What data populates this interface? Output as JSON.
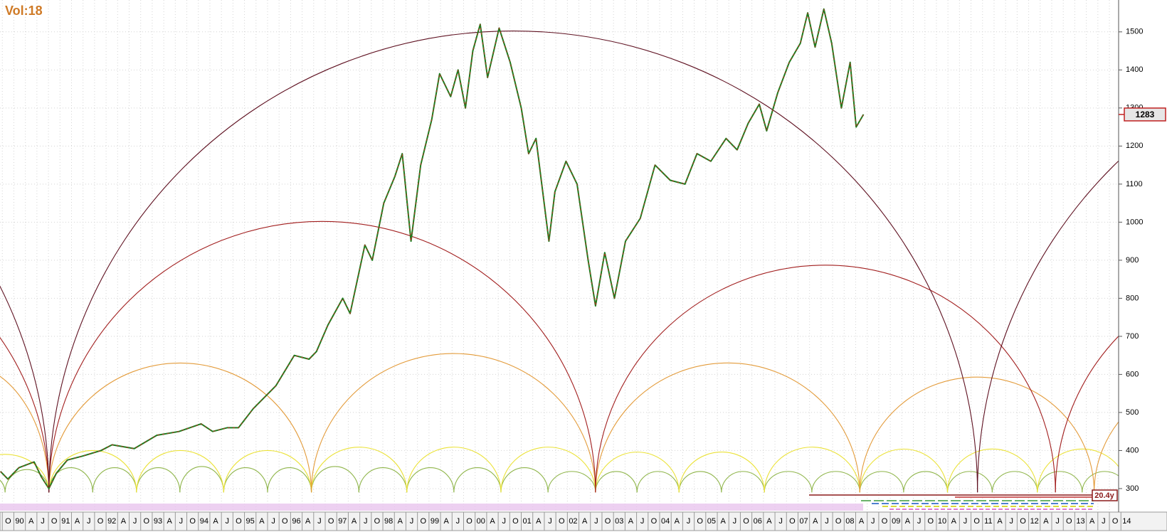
{
  "chart_data": {
    "type": "line",
    "indicator_label": "Vol:18",
    "color": "#1f7d1f",
    "x": [
      1989.71,
      1989.87,
      1990.11,
      1990.44,
      1990.6,
      1990.76,
      1990.92,
      1991.16,
      1991.48,
      1991.89,
      1992.13,
      1992.61,
      1993.1,
      1993.58,
      1994.06,
      1994.31,
      1994.63,
      1994.87,
      1995.19,
      1995.68,
      1996.08,
      1996.4,
      1996.56,
      1996.81,
      1997.13,
      1997.29,
      1997.61,
      1997.77,
      1998.02,
      1998.26,
      1998.42,
      1998.61,
      1998.82,
      1999.06,
      1999.23,
      1999.47,
      1999.63,
      1999.79,
      1999.95,
      2000.11,
      2000.27,
      2000.52,
      2000.76,
      2001.0,
      2001.16,
      2001.32,
      2001.6,
      2001.73,
      2001.97,
      2002.21,
      2002.45,
      2002.61,
      2002.81,
      2003.02,
      2003.26,
      2003.58,
      2003.9,
      2004.23,
      2004.55,
      2004.81,
      2005.11,
      2005.44,
      2005.68,
      2005.92,
      2006.16,
      2006.32,
      2006.56,
      2006.81,
      2007.05,
      2007.21,
      2007.37,
      2007.56,
      2007.73,
      2007.94,
      2008.13,
      2008.26,
      2008.42
    ],
    "values": [
      345,
      325,
      355,
      370,
      330,
      300,
      340,
      375,
      385,
      400,
      415,
      405,
      440,
      450,
      470,
      450,
      460,
      460,
      510,
      570,
      650,
      640,
      660,
      730,
      800,
      760,
      940,
      900,
      1050,
      1120,
      1180,
      950,
      1150,
      1270,
      1390,
      1330,
      1400,
      1300,
      1450,
      1520,
      1380,
      1510,
      1420,
      1300,
      1180,
      1220,
      950,
      1080,
      1160,
      1100,
      900,
      780,
      920,
      800,
      950,
      1010,
      1150,
      1110,
      1100,
      1180,
      1160,
      1220,
      1190,
      1260,
      1310,
      1240,
      1340,
      1420,
      1470,
      1550,
      1460,
      1560,
      1470,
      1300,
      1420,
      1250,
      1283
    ],
    "last_price": 1283,
    "xlim": [
      1989.7,
      2013.95
    ],
    "ylim": [
      270,
      1580
    ],
    "yticks": [
      300,
      400,
      500,
      600,
      700,
      800,
      900,
      1000,
      1100,
      1200,
      1300,
      1400,
      1500
    ],
    "xticks": [
      {
        "value": 1989.75,
        "label": "O"
      },
      {
        "value": 1990,
        "label": "90"
      },
      {
        "value": 1990.25,
        "label": "A"
      },
      {
        "value": 1990.5,
        "label": "J"
      },
      {
        "value": 1990.75,
        "label": "O"
      },
      {
        "value": 1991,
        "label": "91"
      },
      {
        "value": 1991.25,
        "label": "A"
      },
      {
        "value": 1991.5,
        "label": "J"
      },
      {
        "value": 1991.75,
        "label": "O"
      },
      {
        "value": 1992,
        "label": "92"
      },
      {
        "value": 1992.25,
        "label": "A"
      },
      {
        "value": 1992.5,
        "label": "J"
      },
      {
        "value": 1992.75,
        "label": "O"
      },
      {
        "value": 1993,
        "label": "93"
      },
      {
        "value": 1993.25,
        "label": "A"
      },
      {
        "value": 1993.5,
        "label": "J"
      },
      {
        "value": 1993.75,
        "label": "O"
      },
      {
        "value": 1994,
        "label": "94"
      },
      {
        "value": 1994.25,
        "label": "A"
      },
      {
        "value": 1994.5,
        "label": "J"
      },
      {
        "value": 1994.75,
        "label": "O"
      },
      {
        "value": 1995,
        "label": "95"
      },
      {
        "value": 1995.25,
        "label": "A"
      },
      {
        "value": 1995.5,
        "label": "J"
      },
      {
        "value": 1995.75,
        "label": "O"
      },
      {
        "value": 1996,
        "label": "96"
      },
      {
        "value": 1996.25,
        "label": "A"
      },
      {
        "value": 1996.5,
        "label": "J"
      },
      {
        "value": 1996.75,
        "label": "O"
      },
      {
        "value": 1997,
        "label": "97"
      },
      {
        "value": 1997.25,
        "label": "A"
      },
      {
        "value": 1997.5,
        "label": "J"
      },
      {
        "value": 1997.75,
        "label": "O"
      },
      {
        "value": 1998,
        "label": "98"
      },
      {
        "value": 1998.25,
        "label": "A"
      },
      {
        "value": 1998.5,
        "label": "J"
      },
      {
        "value": 1998.75,
        "label": "O"
      },
      {
        "value": 1999,
        "label": "99"
      },
      {
        "value": 1999.25,
        "label": "A"
      },
      {
        "value": 1999.5,
        "label": "J"
      },
      {
        "value": 1999.75,
        "label": "O"
      },
      {
        "value": 2000,
        "label": "00"
      },
      {
        "value": 2000.25,
        "label": "A"
      },
      {
        "value": 2000.5,
        "label": "J"
      },
      {
        "value": 2000.75,
        "label": "O"
      },
      {
        "value": 2001,
        "label": "01"
      },
      {
        "value": 2001.25,
        "label": "A"
      },
      {
        "value": 2001.5,
        "label": "J"
      },
      {
        "value": 2001.75,
        "label": "O"
      },
      {
        "value": 2002,
        "label": "02"
      },
      {
        "value": 2002.25,
        "label": "A"
      },
      {
        "value": 2002.5,
        "label": "J"
      },
      {
        "value": 2002.75,
        "label": "O"
      },
      {
        "value": 2003,
        "label": "03"
      },
      {
        "value": 2003.25,
        "label": "A"
      },
      {
        "value": 2003.5,
        "label": "J"
      },
      {
        "value": 2003.75,
        "label": "O"
      },
      {
        "value": 2004,
        "label": "04"
      },
      {
        "value": 2004.25,
        "label": "A"
      },
      {
        "value": 2004.5,
        "label": "J"
      },
      {
        "value": 2004.75,
        "label": "O"
      },
      {
        "value": 2005,
        "label": "05"
      },
      {
        "value": 2005.25,
        "label": "A"
      },
      {
        "value": 2005.5,
        "label": "J"
      },
      {
        "value": 2005.75,
        "label": "O"
      },
      {
        "value": 2006,
        "label": "06"
      },
      {
        "value": 2006.25,
        "label": "A"
      },
      {
        "value": 2006.5,
        "label": "J"
      },
      {
        "value": 2006.75,
        "label": "O"
      },
      {
        "value": 2007,
        "label": "07"
      },
      {
        "value": 2007.25,
        "label": "A"
      },
      {
        "value": 2007.5,
        "label": "J"
      },
      {
        "value": 2007.75,
        "label": "O"
      },
      {
        "value": 2008,
        "label": "08"
      },
      {
        "value": 2008.25,
        "label": "A"
      },
      {
        "value": 2008.5,
        "label": "J"
      },
      {
        "value": 2008.75,
        "label": "O"
      },
      {
        "value": 2009,
        "label": "09"
      },
      {
        "value": 2009.25,
        "label": "A"
      },
      {
        "value": 2009.5,
        "label": "J"
      },
      {
        "value": 2009.75,
        "label": "O"
      },
      {
        "value": 2010,
        "label": "10"
      },
      {
        "value": 2010.25,
        "label": "A"
      },
      {
        "value": 2010.5,
        "label": "J"
      },
      {
        "value": 2010.75,
        "label": "O"
      },
      {
        "value": 2011,
        "label": "11"
      },
      {
        "value": 2011.25,
        "label": "A"
      },
      {
        "value": 2011.5,
        "label": "J"
      },
      {
        "value": 2011.75,
        "label": "O"
      },
      {
        "value": 2012,
        "label": "12"
      },
      {
        "value": 2012.25,
        "label": "A"
      },
      {
        "value": 2012.5,
        "label": "J"
      },
      {
        "value": 2012.75,
        "label": "O"
      },
      {
        "value": 2013,
        "label": "13"
      },
      {
        "value": 2013.25,
        "label": "A"
      },
      {
        "value": 2013.5,
        "label": "J"
      },
      {
        "value": 2013.75,
        "label": "O"
      },
      {
        "value": 2014,
        "label": "14"
      }
    ],
    "grid": true,
    "cycle_label": "20.4y",
    "cycle_base": 290,
    "arcs": [
      {
        "from": 1988.86,
        "to": 1989.81,
        "peak": 340,
        "color": "#8fb54a"
      },
      {
        "from": 1989.81,
        "to": 1990.76,
        "peak": 350,
        "color": "#8fb54a"
      },
      {
        "from": 1990.76,
        "to": 1991.71,
        "peak": 355,
        "color": "#8fb54a"
      },
      {
        "from": 1991.71,
        "to": 1992.66,
        "peak": 355,
        "color": "#8fb54a"
      },
      {
        "from": 1992.66,
        "to": 1993.6,
        "peak": 355,
        "color": "#8fb54a"
      },
      {
        "from": 1993.6,
        "to": 1994.55,
        "peak": 358,
        "color": "#8fb54a"
      },
      {
        "from": 1994.55,
        "to": 1995.5,
        "peak": 355,
        "color": "#8fb54a"
      },
      {
        "from": 1995.5,
        "to": 1996.45,
        "peak": 355,
        "color": "#8fb54a"
      },
      {
        "from": 1996.45,
        "to": 1997.48,
        "peak": 358,
        "color": "#8fb54a"
      },
      {
        "from": 1997.48,
        "to": 1998.52,
        "peak": 355,
        "color": "#8fb54a"
      },
      {
        "from": 1998.52,
        "to": 1999.54,
        "peak": 355,
        "color": "#8fb54a"
      },
      {
        "from": 1999.54,
        "to": 2000.56,
        "peak": 355,
        "color": "#8fb54a"
      },
      {
        "from": 2000.56,
        "to": 2001.58,
        "peak": 355,
        "color": "#8fb54a"
      },
      {
        "from": 2001.58,
        "to": 2002.61,
        "peak": 345,
        "color": "#8fb54a"
      },
      {
        "from": 2002.61,
        "to": 2003.51,
        "peak": 345,
        "color": "#8fb54a"
      },
      {
        "from": 2003.51,
        "to": 2004.42,
        "peak": 345,
        "color": "#8fb54a"
      },
      {
        "from": 2004.42,
        "to": 2005.34,
        "peak": 345,
        "color": "#8fb54a"
      },
      {
        "from": 2005.34,
        "to": 2006.27,
        "peak": 345,
        "color": "#8fb54a"
      },
      {
        "from": 2006.27,
        "to": 2007.3,
        "peak": 345,
        "color": "#8fb54a"
      },
      {
        "from": 2007.3,
        "to": 2008.34,
        "peak": 345,
        "color": "#8fb54a"
      },
      {
        "from": 2008.34,
        "to": 2009.29,
        "peak": 345,
        "color": "#8fb54a"
      },
      {
        "from": 2009.29,
        "to": 2010.24,
        "peak": 345,
        "color": "#8fb54a"
      },
      {
        "from": 2010.24,
        "to": 2011.21,
        "peak": 345,
        "color": "#8fb54a"
      },
      {
        "from": 2011.21,
        "to": 2012.19,
        "peak": 345,
        "color": "#8fb54a"
      },
      {
        "from": 2012.19,
        "to": 2013.16,
        "peak": 345,
        "color": "#8fb54a"
      },
      {
        "from": 2013.16,
        "to": 2014.14,
        "peak": 345,
        "color": "#8fb54a"
      },
      {
        "from": 1988.86,
        "to": 1990.76,
        "peak": 390,
        "color": "#ebe238"
      },
      {
        "from": 1990.76,
        "to": 1992.66,
        "peak": 400,
        "color": "#ebe238"
      },
      {
        "from": 1992.66,
        "to": 1994.55,
        "peak": 400,
        "color": "#ebe238"
      },
      {
        "from": 1994.55,
        "to": 1996.45,
        "peak": 400,
        "color": "#ebe238"
      },
      {
        "from": 1996.45,
        "to": 1998.52,
        "peak": 409,
        "color": "#ebe238"
      },
      {
        "from": 1998.52,
        "to": 2000.56,
        "peak": 409,
        "color": "#ebe238"
      },
      {
        "from": 2000.56,
        "to": 2002.61,
        "peak": 409,
        "color": "#ebe238"
      },
      {
        "from": 2002.61,
        "to": 2004.42,
        "peak": 396,
        "color": "#ebe238"
      },
      {
        "from": 2004.42,
        "to": 2006.27,
        "peak": 396,
        "color": "#ebe238"
      },
      {
        "from": 2006.27,
        "to": 2008.34,
        "peak": 409,
        "color": "#ebe238"
      },
      {
        "from": 2008.34,
        "to": 2010.24,
        "peak": 404,
        "color": "#ebe238"
      },
      {
        "from": 2010.24,
        "to": 2012.19,
        "peak": 404,
        "color": "#ebe238"
      },
      {
        "from": 2012.19,
        "to": 2014.14,
        "peak": 404,
        "color": "#ebe238"
      },
      {
        "from": 1986.97,
        "to": 1990.76,
        "peak": 630,
        "color": "#e39b3a"
      },
      {
        "from": 1990.76,
        "to": 1996.45,
        "peak": 630,
        "color": "#e39b3a"
      },
      {
        "from": 1996.45,
        "to": 2002.61,
        "peak": 655,
        "color": "#e39b3a"
      },
      {
        "from": 2002.61,
        "to": 2008.34,
        "peak": 630,
        "color": "#e39b3a"
      },
      {
        "from": 2008.34,
        "to": 2013.42,
        "peak": 593,
        "color": "#e39b3a"
      },
      {
        "from": 2013.42,
        "to": 2018.5,
        "peak": 593,
        "color": "#e39b3a"
      },
      {
        "from": 1978.91,
        "to": 1990.76,
        "peak": 1002,
        "color": "#a11d1d"
      },
      {
        "from": 1990.76,
        "to": 2002.61,
        "peak": 1002,
        "color": "#a11d1d"
      },
      {
        "from": 2002.61,
        "to": 2012.58,
        "peak": 887,
        "color": "#a11d1d"
      },
      {
        "from": 2012.58,
        "to": 2022.55,
        "peak": 887,
        "color": "#a11d1d"
      },
      {
        "from": 1970.63,
        "to": 1990.76,
        "peak": 1503,
        "color": "#5e1020"
      },
      {
        "from": 1990.76,
        "to": 2010.89,
        "peak": 1503,
        "color": "#5e1020"
      },
      {
        "from": 2010.89,
        "to": 2031.02,
        "peak": 1503,
        "color": "#5e1020"
      }
    ]
  }
}
